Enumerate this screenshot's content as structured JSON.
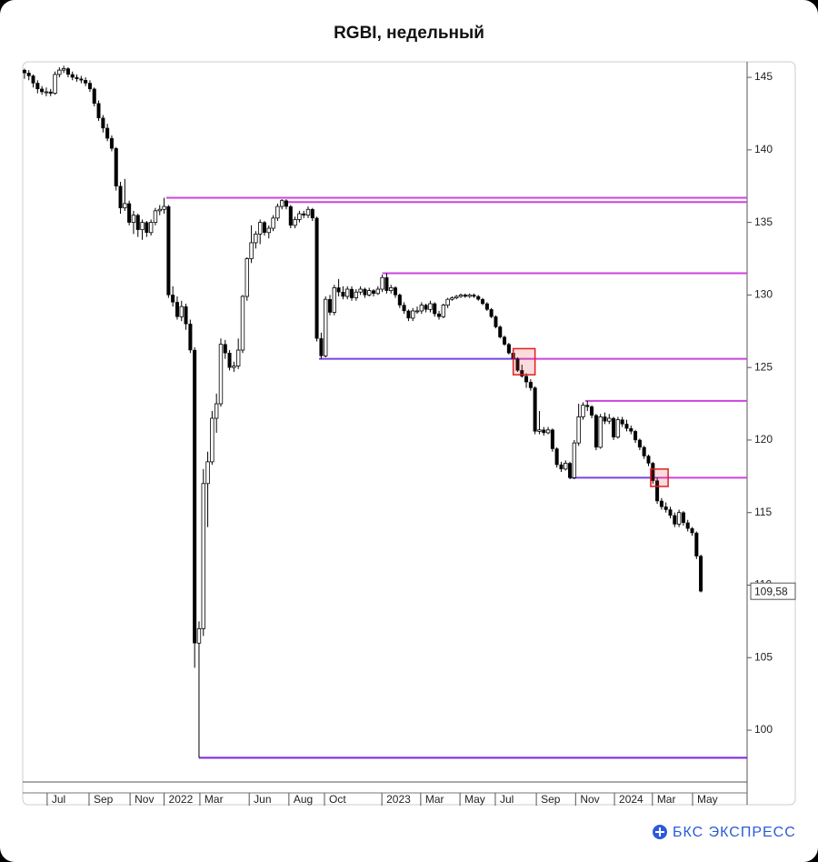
{
  "chart_data": {
    "type": "candlestick",
    "title": "RGBI, недельный",
    "ylim": [
      96.43,
      146.07
    ],
    "yticks": [
      100,
      105,
      110,
      115,
      120,
      125,
      130,
      135,
      140,
      145
    ],
    "xlim": [
      -0.4,
      165.6
    ],
    "xticks": [
      {
        "value": 5.2,
        "label": "Jul"
      },
      {
        "value": 14.8,
        "label": "Sep"
      },
      {
        "value": 24.2,
        "label": "Nov"
      },
      {
        "value": 32,
        "label": "2022"
      },
      {
        "value": 40.2,
        "label": "Mar"
      },
      {
        "value": 51.5,
        "label": "Jun"
      },
      {
        "value": 60.6,
        "label": "Aug"
      },
      {
        "value": 68.75,
        "label": "Oct"
      },
      {
        "value": 81.9,
        "label": "2023"
      },
      {
        "value": 90.8,
        "label": "Mar"
      },
      {
        "value": 99.8,
        "label": "May"
      },
      {
        "value": 107.9,
        "label": "Jul"
      },
      {
        "value": 117.3,
        "label": "Sep"
      },
      {
        "value": 126.3,
        "label": "Nov"
      },
      {
        "value": 135.2,
        "label": "2024"
      },
      {
        "value": 143.9,
        "label": "Mar"
      },
      {
        "value": 153.1,
        "label": "May"
      }
    ],
    "up_color": "#ffffff",
    "down_color": "#000000",
    "ohlc": [
      [
        145.5,
        145.6,
        144.9,
        145.3
      ],
      [
        145.3,
        145.5,
        144.8,
        145.1
      ],
      [
        145.1,
        145.2,
        144.3,
        144.6
      ],
      [
        144.6,
        144.8,
        143.9,
        144.2
      ],
      [
        144.2,
        144.4,
        143.8,
        144.0
      ],
      [
        144.0,
        144.3,
        143.7,
        144.0
      ],
      [
        144.0,
        144.2,
        143.7,
        143.9
      ],
      [
        143.9,
        145.4,
        143.8,
        145.2
      ],
      [
        145.2,
        145.7,
        145.0,
        145.5
      ],
      [
        145.5,
        145.8,
        145.3,
        145.6
      ],
      [
        145.6,
        145.7,
        145.0,
        145.2
      ],
      [
        145.2,
        145.4,
        144.8,
        145.0
      ],
      [
        145.0,
        145.2,
        144.7,
        144.9
      ],
      [
        144.9,
        145.1,
        144.6,
        144.8
      ],
      [
        144.8,
        145.0,
        144.4,
        144.6
      ],
      [
        144.6,
        144.8,
        144.0,
        144.2
      ],
      [
        144.2,
        144.3,
        143.0,
        143.2
      ],
      [
        143.2,
        143.4,
        142.0,
        142.2
      ],
      [
        142.2,
        142.4,
        141.2,
        141.5
      ],
      [
        141.5,
        141.8,
        140.6,
        140.8
      ],
      [
        140.8,
        141.0,
        139.9,
        140.1
      ],
      [
        140.1,
        140.2,
        137.2,
        137.5
      ],
      [
        137.5,
        137.8,
        135.6,
        136.0
      ],
      [
        136.0,
        138.0,
        135.8,
        136.3
      ],
      [
        136.3,
        136.5,
        134.8,
        135.0
      ],
      [
        135.0,
        135.8,
        134.2,
        135.5
      ],
      [
        135.5,
        135.6,
        134.0,
        134.5
      ],
      [
        134.5,
        135.2,
        133.8,
        135.0
      ],
      [
        135.0,
        135.1,
        134.0,
        134.3
      ],
      [
        134.3,
        135.2,
        134.1,
        135.0
      ],
      [
        135.0,
        136.0,
        134.8,
        135.8
      ],
      [
        135.8,
        136.2,
        135.5,
        135.9
      ],
      [
        135.9,
        136.7,
        135.6,
        136.1
      ],
      [
        136.1,
        136.2,
        129.8,
        130.0
      ],
      [
        130.0,
        130.6,
        129.2,
        129.5
      ],
      [
        129.5,
        129.9,
        128.3,
        128.5
      ],
      [
        128.5,
        129.6,
        128.2,
        129.2
      ],
      [
        129.2,
        129.4,
        127.6,
        128.0
      ],
      [
        128.0,
        128.3,
        126.0,
        126.2
      ],
      [
        126.2,
        126.4,
        104.3,
        106.0
      ],
      [
        106.0,
        107.5,
        98.1,
        107.0
      ],
      [
        107.0,
        118.0,
        106.5,
        117.0
      ],
      [
        117.0,
        119.2,
        114.0,
        118.5
      ],
      [
        118.5,
        122.0,
        118.3,
        121.5
      ],
      [
        121.5,
        123.2,
        120.5,
        122.5
      ],
      [
        122.5,
        127.0,
        122.3,
        126.6
      ],
      [
        126.6,
        126.9,
        125.6,
        126.0
      ],
      [
        126.0,
        126.2,
        124.8,
        125.0
      ],
      [
        125.0,
        125.4,
        124.7,
        125.1
      ],
      [
        125.1,
        127.0,
        124.9,
        126.2
      ],
      [
        126.2,
        130.0,
        126.0,
        129.9
      ],
      [
        129.9,
        132.6,
        129.6,
        132.5
      ],
      [
        132.5,
        134.8,
        132.2,
        133.6
      ],
      [
        133.6,
        134.4,
        133.2,
        134.2
      ],
      [
        134.2,
        135.2,
        133.5,
        135.0
      ],
      [
        135.0,
        135.1,
        134.1,
        134.3
      ],
      [
        134.3,
        134.8,
        133.9,
        134.6
      ],
      [
        134.6,
        135.5,
        134.4,
        135.3
      ],
      [
        135.3,
        136.3,
        135.1,
        136.1
      ],
      [
        136.1,
        136.6,
        135.9,
        136.5
      ],
      [
        136.5,
        136.6,
        135.9,
        136.1
      ],
      [
        136.1,
        136.2,
        134.6,
        134.8
      ],
      [
        134.8,
        135.4,
        134.6,
        135.2
      ],
      [
        135.2,
        135.8,
        135.0,
        135.6
      ],
      [
        135.6,
        135.8,
        135.3,
        135.5
      ],
      [
        135.5,
        136.1,
        135.3,
        135.9
      ],
      [
        135.9,
        136.0,
        135.1,
        135.3
      ],
      [
        135.3,
        135.4,
        126.8,
        127.0
      ],
      [
        127.0,
        127.4,
        125.6,
        125.8
      ],
      [
        125.8,
        129.9,
        125.7,
        129.7
      ],
      [
        129.7,
        130.0,
        128.6,
        128.8
      ],
      [
        128.8,
        130.7,
        128.6,
        130.5
      ],
      [
        130.5,
        131.1,
        129.9,
        130.2
      ],
      [
        130.2,
        130.6,
        129.7,
        129.9
      ],
      [
        129.9,
        130.6,
        129.7,
        130.4
      ],
      [
        130.4,
        130.6,
        129.6,
        129.8
      ],
      [
        129.8,
        130.4,
        129.6,
        130.2
      ],
      [
        130.2,
        130.6,
        130.0,
        130.4
      ],
      [
        130.4,
        130.5,
        129.8,
        130.0
      ],
      [
        130.0,
        130.5,
        129.9,
        130.3
      ],
      [
        130.3,
        130.4,
        129.9,
        130.1
      ],
      [
        130.1,
        130.6,
        130.0,
        130.4
      ],
      [
        130.4,
        131.4,
        130.2,
        131.2
      ],
      [
        131.2,
        131.5,
        130.1,
        130.3
      ],
      [
        130.3,
        130.7,
        130.1,
        130.5
      ],
      [
        130.5,
        130.6,
        129.8,
        130.0
      ],
      [
        130.0,
        130.1,
        129.1,
        129.3
      ],
      [
        129.3,
        129.5,
        128.7,
        128.9
      ],
      [
        128.9,
        129.0,
        128.2,
        128.4
      ],
      [
        128.4,
        129.1,
        128.2,
        128.9
      ],
      [
        128.9,
        129.2,
        128.7,
        128.9
      ],
      [
        128.9,
        129.5,
        128.7,
        129.3
      ],
      [
        129.3,
        129.4,
        128.8,
        129.0
      ],
      [
        129.0,
        129.6,
        128.8,
        129.4
      ],
      [
        129.4,
        129.5,
        128.5,
        128.7
      ],
      [
        128.7,
        128.9,
        128.3,
        128.5
      ],
      [
        128.5,
        129.4,
        128.4,
        129.3
      ],
      [
        129.3,
        129.8,
        129.1,
        129.7
      ],
      [
        129.7,
        129.9,
        129.6,
        129.8
      ],
      [
        129.8,
        130.0,
        129.7,
        129.9
      ],
      [
        129.9,
        130.1,
        129.8,
        130.0
      ],
      [
        130.0,
        130.1,
        129.8,
        129.9
      ],
      [
        129.9,
        130.1,
        129.8,
        130.0
      ],
      [
        130.0,
        130.1,
        129.8,
        129.9
      ],
      [
        129.9,
        130.0,
        129.6,
        129.7
      ],
      [
        129.7,
        129.8,
        129.3,
        129.4
      ],
      [
        129.4,
        129.5,
        128.9,
        129.0
      ],
      [
        129.0,
        129.1,
        128.4,
        128.5
      ],
      [
        128.5,
        128.6,
        127.7,
        127.8
      ],
      [
        127.8,
        127.9,
        127.0,
        127.1
      ],
      [
        127.1,
        127.2,
        126.5,
        126.6
      ],
      [
        126.6,
        126.7,
        125.9,
        126.0
      ],
      [
        126.0,
        126.1,
        125.5,
        125.6
      ],
      [
        125.6,
        125.7,
        124.7,
        124.8
      ],
      [
        124.8,
        125.2,
        124.3,
        124.4
      ],
      [
        124.4,
        124.6,
        123.6,
        124.0
      ],
      [
        124.0,
        124.2,
        123.4,
        123.6
      ],
      [
        123.6,
        123.7,
        120.4,
        120.6
      ],
      [
        120.6,
        122.0,
        120.4,
        120.7
      ],
      [
        120.7,
        120.9,
        120.3,
        120.5
      ],
      [
        120.5,
        120.9,
        120.4,
        120.7
      ],
      [
        120.7,
        120.8,
        119.2,
        119.4
      ],
      [
        119.4,
        119.5,
        118.1,
        118.3
      ],
      [
        118.3,
        118.5,
        117.8,
        118.0
      ],
      [
        118.0,
        118.6,
        117.9,
        118.4
      ],
      [
        118.4,
        118.5,
        117.3,
        117.4
      ],
      [
        117.4,
        120.0,
        117.3,
        119.8
      ],
      [
        119.8,
        122.5,
        119.6,
        121.6
      ],
      [
        121.6,
        122.6,
        121.4,
        122.4
      ],
      [
        122.4,
        122.7,
        122.0,
        122.3
      ],
      [
        122.3,
        122.4,
        121.5,
        121.7
      ],
      [
        121.7,
        121.8,
        119.3,
        119.5
      ],
      [
        119.5,
        121.8,
        119.4,
        121.6
      ],
      [
        121.6,
        121.9,
        121.1,
        121.3
      ],
      [
        121.3,
        121.8,
        121.1,
        121.5
      ],
      [
        121.5,
        121.6,
        120.0,
        120.2
      ],
      [
        120.2,
        121.6,
        120.1,
        121.4
      ],
      [
        121.4,
        121.6,
        120.9,
        121.1
      ],
      [
        121.1,
        121.4,
        120.6,
        120.8
      ],
      [
        120.8,
        121.0,
        120.4,
        120.6
      ],
      [
        120.6,
        120.7,
        119.8,
        120.0
      ],
      [
        120.0,
        120.1,
        119.3,
        119.5
      ],
      [
        119.5,
        119.6,
        118.7,
        118.9
      ],
      [
        118.9,
        119.0,
        118.2,
        118.4
      ],
      [
        118.4,
        118.5,
        117.0,
        117.2
      ],
      [
        117.2,
        117.4,
        115.6,
        115.8
      ],
      [
        115.8,
        116.0,
        115.2,
        115.4
      ],
      [
        115.4,
        115.7,
        115.0,
        115.2
      ],
      [
        115.2,
        115.4,
        114.6,
        114.8
      ],
      [
        114.8,
        115.0,
        114.0,
        114.2
      ],
      [
        114.2,
        115.2,
        114.0,
        115.0
      ],
      [
        115.0,
        115.1,
        114.1,
        114.3
      ],
      [
        114.3,
        114.5,
        113.7,
        113.9
      ],
      [
        113.9,
        114.0,
        113.4,
        113.6
      ],
      [
        113.6,
        113.7,
        111.8,
        112.0
      ],
      [
        112.0,
        112.1,
        109.5,
        109.58
      ]
    ],
    "levels": [
      {
        "value": 136.7,
        "x": [
          32.5,
          165.6
        ],
        "color": "#cc44dd"
      },
      {
        "value": 136.4,
        "x": [
          59.5,
          165.6
        ],
        "color": "#cc44dd"
      },
      {
        "value": 131.5,
        "x": [
          82,
          165.6
        ],
        "color": "#cc44dd"
      },
      {
        "value": 125.6,
        "x": [
          67.5,
          113
        ],
        "color": "#7744dd"
      },
      {
        "value": 125.6,
        "x": [
          113,
          165.6
        ],
        "color": "#cc44dd"
      },
      {
        "value": 122.7,
        "x": [
          128.5,
          165.6
        ],
        "color": "#cc44dd"
      },
      {
        "value": 117.4,
        "x": [
          125,
          144
        ],
        "color": "#7744dd"
      },
      {
        "value": 117.4,
        "x": [
          144,
          165.6
        ],
        "color": "#cc44dd"
      },
      {
        "value": 98.1,
        "x": [
          40,
          165.6
        ],
        "color": "#7a22e0"
      }
    ],
    "boxes": [
      {
        "x": [
          112,
          117
        ],
        "y": [
          124.5,
          126.3
        ]
      },
      {
        "x": [
          143.5,
          147.5
        ],
        "y": [
          116.8,
          118.0
        ]
      }
    ],
    "last_price": {
      "value": 109.58,
      "label": "109,58"
    },
    "brand": "БКС ЭКСПРЕСС"
  }
}
